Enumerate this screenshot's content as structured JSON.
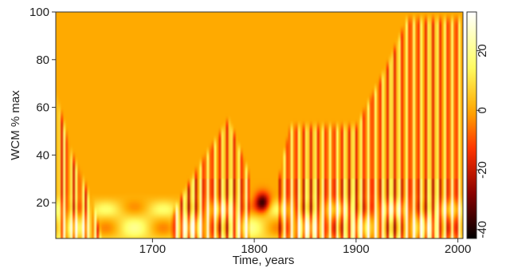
{
  "chart_data": {
    "type": "heatmap",
    "title": "",
    "xlabel": "Time, years",
    "ylabel": "WCM % max",
    "x_range": [
      1605,
      2005
    ],
    "y_range": [
      5,
      100
    ],
    "x_ticks": [
      1700,
      1800,
      1900,
      2000
    ],
    "y_ticks": [
      20,
      40,
      60,
      80,
      100
    ],
    "colorbar": {
      "range": [
        -43,
        33
      ],
      "ticks": [
        20,
        0,
        -20,
        -40
      ],
      "colors": {
        "high": "#ffffff",
        "upper": "#ffff66",
        "neutral": "#ffaa00",
        "lower": "#ff3300",
        "deep": "#880000",
        "low": "#000000"
      }
    },
    "background_value": 0,
    "features": {
      "oscillation_band": {
        "description": "alternating positive/negative vertical stripes",
        "spans": [
          [
            1718,
            1795
          ],
          [
            1825,
            2005
          ]
        ],
        "stripe_period_years": 7.5,
        "top_envelope": [
          [
            1715,
            15
          ],
          [
            1745,
            38
          ],
          [
            1775,
            58
          ],
          [
            1795,
            35
          ],
          [
            1815,
            15
          ],
          [
            1835,
            55
          ],
          [
            1900,
            55
          ],
          [
            1930,
            80
          ],
          [
            1950,
            100
          ],
          [
            2005,
            100
          ]
        ]
      },
      "early_activity": {
        "span": [
          1605,
          1650
        ],
        "top_envelope": [
          [
            1605,
            70
          ],
          [
            1620,
            45
          ],
          [
            1640,
            25
          ],
          [
            1650,
            10
          ]
        ]
      },
      "low_band": {
        "y_top": 25,
        "description": "warm/yellow band near bottom across whole record"
      },
      "minimum": {
        "x": 1808,
        "y": 20,
        "value": -40
      }
    }
  }
}
